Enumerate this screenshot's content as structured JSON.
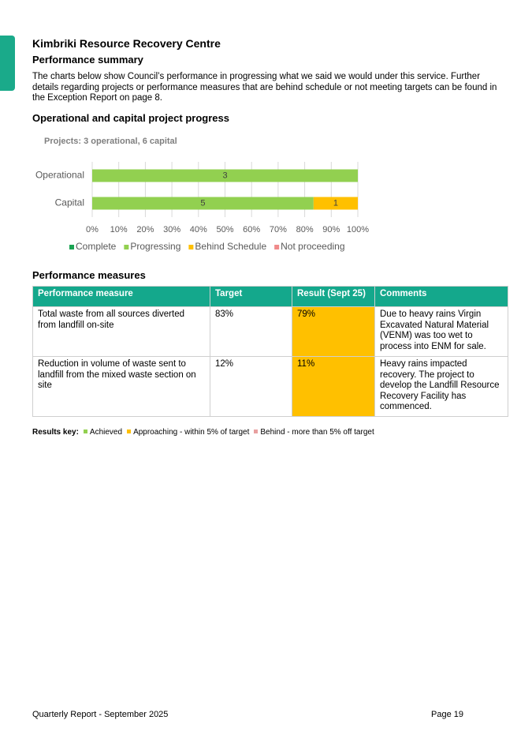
{
  "header": {
    "title": "Kimbriki Resource Recovery Centre",
    "subtitle": "Performance summary",
    "intro": "The charts below show Council’s performance in progressing what we said we would under this service. Further details regarding projects or performance measures that are behind schedule or not meeting targets can be found in the Exception Report on page 8."
  },
  "progress_heading": "Operational and capital project progress",
  "chart_data": {
    "type": "stacked-bar-horizontal",
    "title": "Projects: 3 operational, 6 capital",
    "categories": [
      "Operational",
      "Capital"
    ],
    "series": [
      {
        "name": "Complete",
        "color": "#1aa352",
        "values": [
          0,
          0
        ]
      },
      {
        "name": "Progressing",
        "color": "#92d050",
        "values": [
          3,
          5
        ]
      },
      {
        "name": "Behind Schedule",
        "color": "#ffc000",
        "values": [
          0,
          1
        ]
      },
      {
        "name": "Not proceeding",
        "color": "#f08a8a",
        "values": [
          0,
          0
        ]
      }
    ],
    "normalize": "percent",
    "xlim": [
      0,
      100
    ],
    "xticks": [
      {
        "value": 0,
        "label": "0%"
      },
      {
        "value": 10,
        "label": "10%"
      },
      {
        "value": 20,
        "label": "20%"
      },
      {
        "value": 30,
        "label": "30%"
      },
      {
        "value": 40,
        "label": "40%"
      },
      {
        "value": 50,
        "label": "50%"
      },
      {
        "value": 60,
        "label": "60%"
      },
      {
        "value": 70,
        "label": "70%"
      },
      {
        "value": 80,
        "label": "80%"
      },
      {
        "value": 90,
        "label": "90%"
      },
      {
        "value": 100,
        "label": "100%"
      }
    ],
    "grid": true,
    "legend": "bottom"
  },
  "measures_heading": "Performance measures",
  "table": {
    "header": [
      "Performance measure",
      "Target",
      "Result (Sept 25)",
      "Comments"
    ],
    "rows": [
      [
        "Total waste from all sources diverted from landfill on-site",
        "83%",
        "79%",
        "Due to heavy rains Virgin Excavated Natural Material (VENM) was too wet to process into ENM for sale."
      ],
      [
        "Reduction in volume of waste sent to landfill from the mixed waste section on site",
        "12%",
        "11%",
        "Heavy rains impacted recovery. The project to develop the Landfill Resource Recovery Facility has commenced."
      ]
    ]
  },
  "results_key": {
    "label": "Results key:",
    "items": [
      "Achieved",
      "Approaching - within 5% of target",
      "Behind - more than 5% off target"
    ]
  },
  "footer": {
    "left": "Quarterly Report - September 2025",
    "right": "Page 19"
  }
}
